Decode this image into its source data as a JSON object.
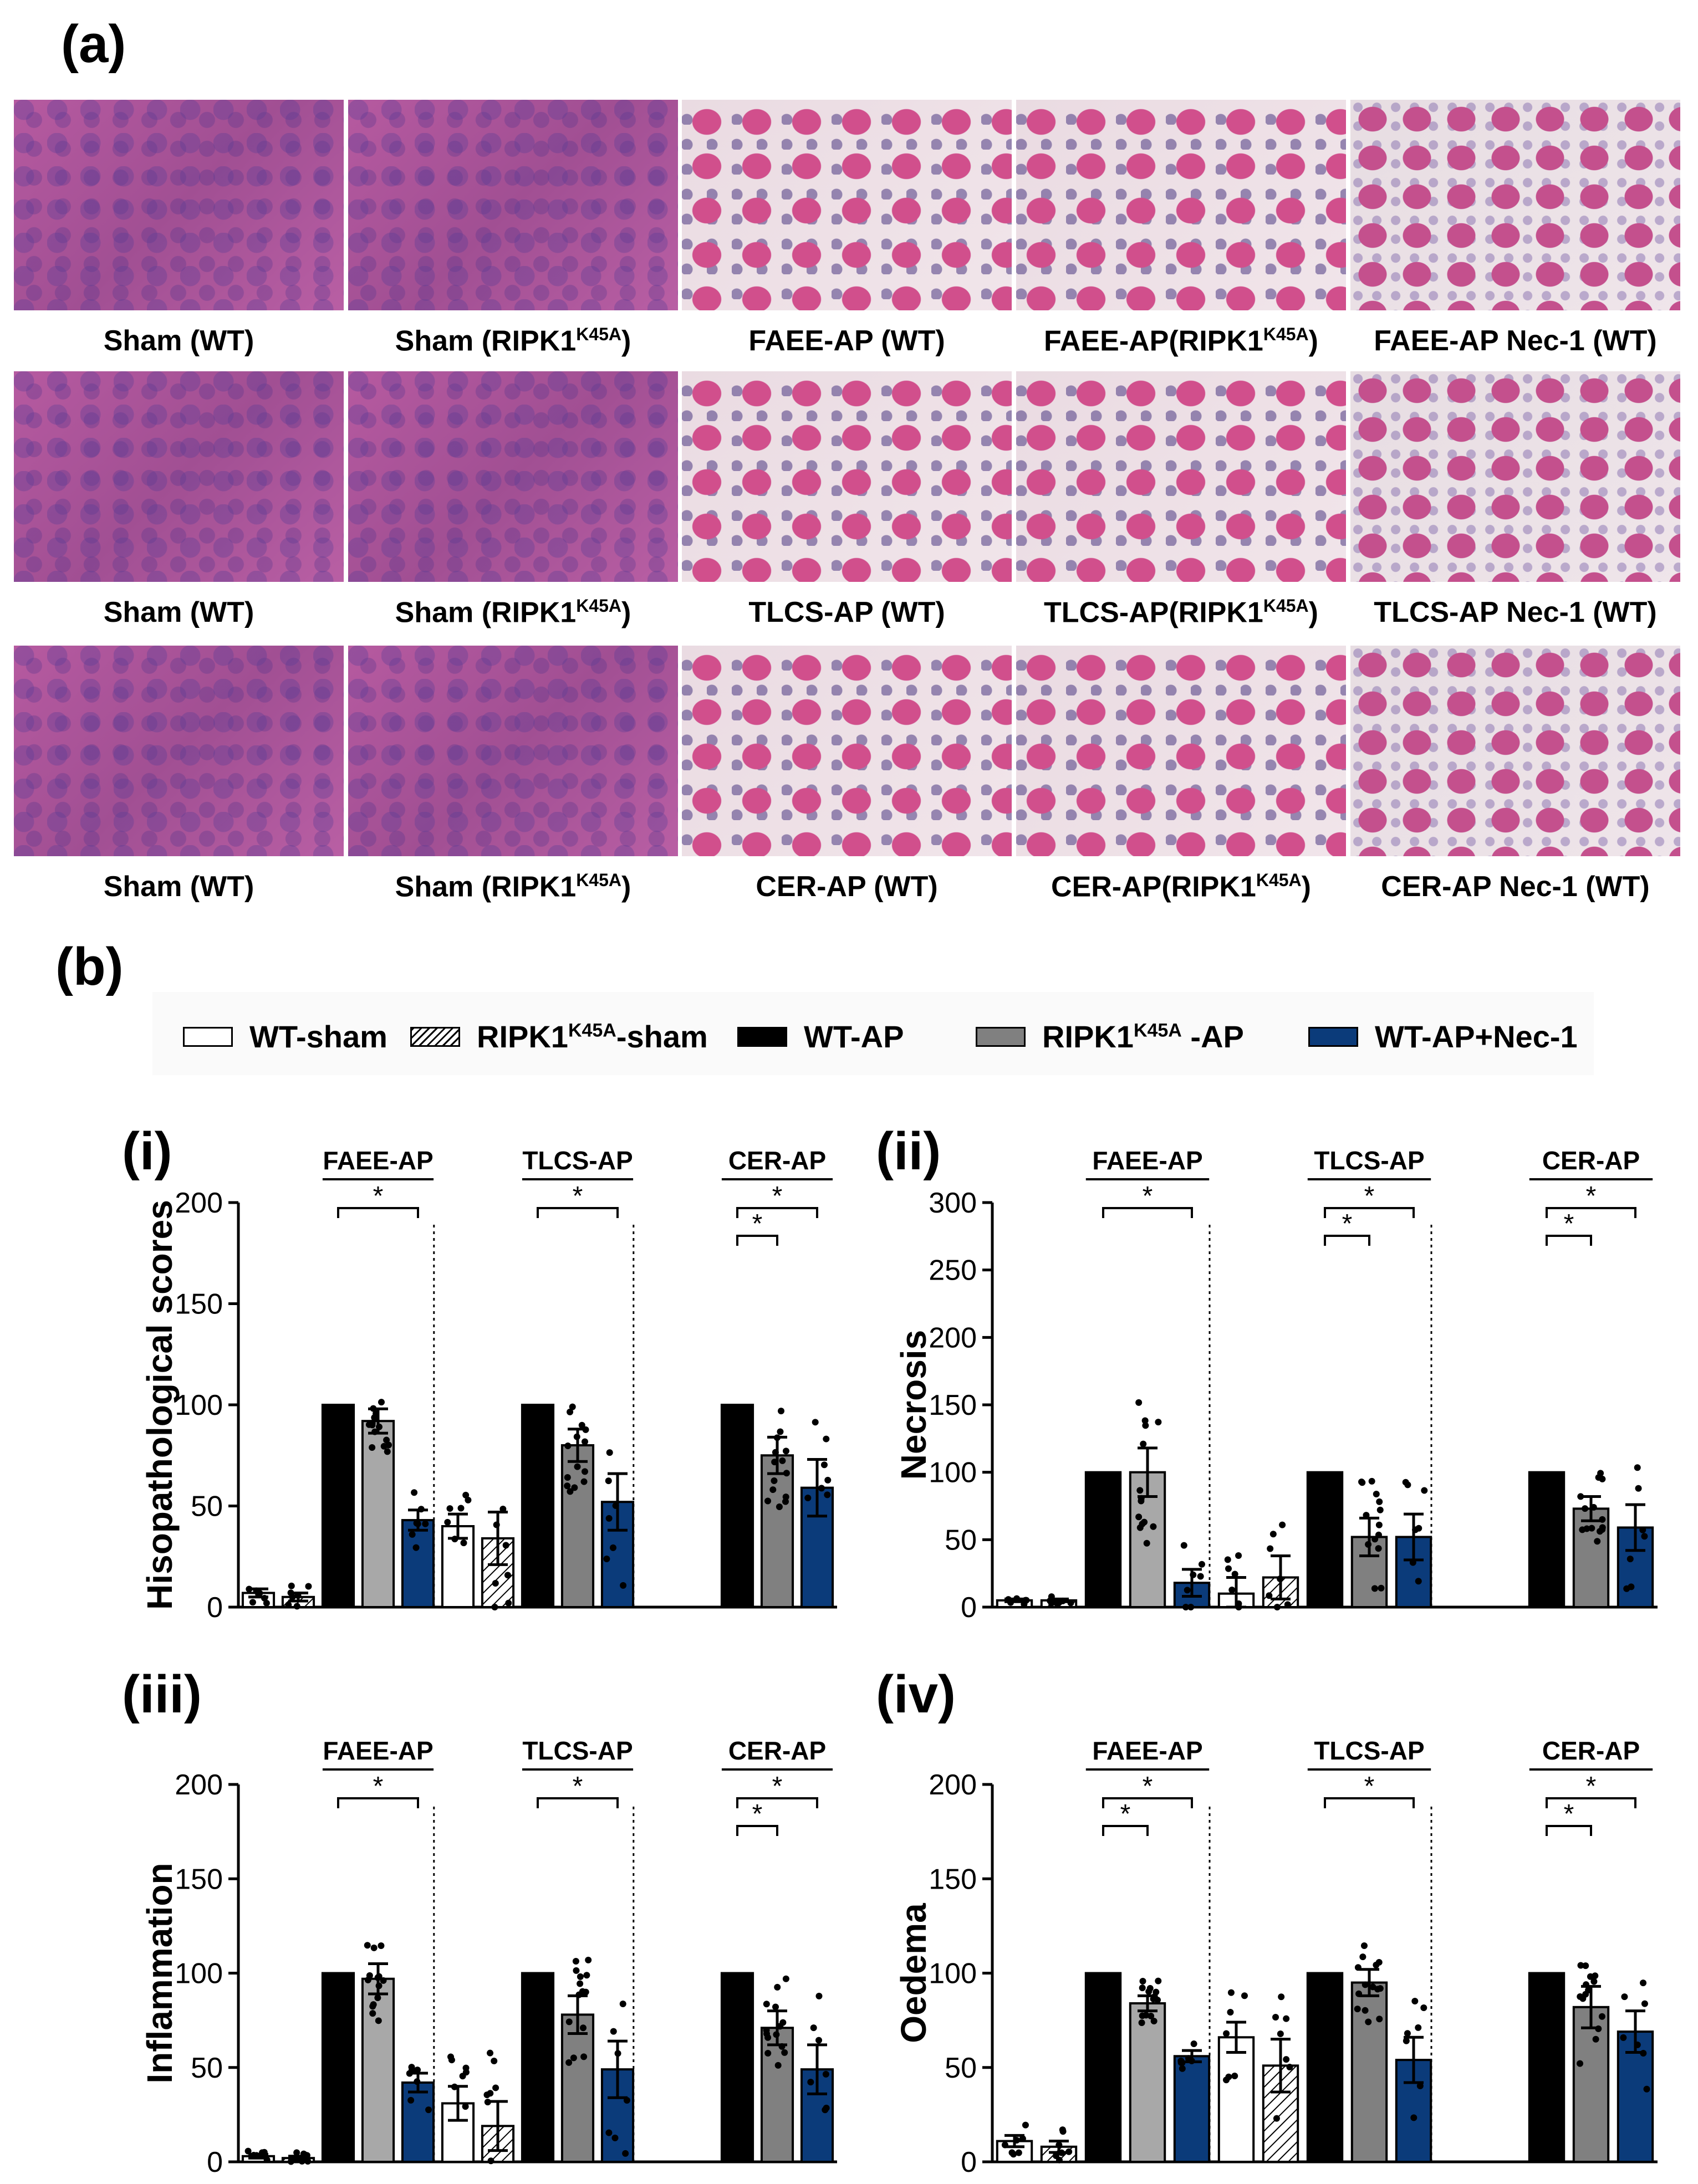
{
  "panel_a_label": "(a)",
  "panel_b_label": "(b)",
  "histology": {
    "rows": [
      {
        "tone": "normal",
        "labels": [
          "Sham (WT)",
          "Sham (RIPK1",
          "FAEE-AP (WT)",
          "FAEE-AP(RIPK1",
          "FAEE-AP Nec-1 (WT)"
        ],
        "sups": [
          "",
          "K45A",
          "",
          "K45A",
          ""
        ],
        "suffixes": [
          "",
          ")",
          "",
          ")",
          ""
        ],
        "styles": [
          "normal",
          "normal",
          "injured",
          "injured",
          "lobular"
        ]
      },
      {
        "labels": [
          "Sham (WT)",
          "Sham (RIPK1",
          "TLCS-AP (WT)",
          "TLCS-AP(RIPK1",
          "TLCS-AP Nec-1 (WT)"
        ],
        "sups": [
          "",
          "K45A",
          "",
          "K45A",
          ""
        ],
        "suffixes": [
          "",
          ")",
          "",
          ")",
          ""
        ],
        "styles": [
          "normal",
          "normal",
          "injured",
          "injured",
          "lobular"
        ]
      },
      {
        "labels": [
          "Sham (WT)",
          "Sham (RIPK1",
          "CER-AP (WT)",
          "CER-AP(RIPK1",
          "CER-AP Nec-1 (WT)"
        ],
        "sups": [
          "",
          "K45A",
          "",
          "K45A",
          ""
        ],
        "suffixes": [
          "",
          ")",
          "",
          ")",
          ""
        ],
        "styles": [
          "normal",
          "normal",
          "injured",
          "injured",
          "lobular"
        ]
      }
    ]
  },
  "legend": {
    "items": [
      {
        "label": "WT-sham",
        "sup": "",
        "suffix": "",
        "fill": "#ffffff",
        "hatch": false
      },
      {
        "label": "RIPK1",
        "sup": "K45A",
        "suffix": "-sham",
        "fill": "#ffffff",
        "hatch": true
      },
      {
        "label": "WT-AP",
        "sup": "",
        "suffix": "",
        "fill": "#000000",
        "hatch": false
      },
      {
        "label": "RIPK1",
        "sup": "K45A",
        "suffix": " -AP",
        "fill": "#808080",
        "hatch": false
      },
      {
        "label": "WT-AP+Nec-1",
        "sup": "",
        "suffix": "",
        "fill": "#0b3b7a",
        "hatch": false
      }
    ]
  },
  "colors": {
    "wt_sham": "#ffffff",
    "ripk_sham": "#ffffff",
    "wt_ap": "#000000",
    "ripk_ap": "#808080",
    "ripk_ap_light": "#a8a8a8",
    "nec1": "#0b3b7a"
  },
  "chart_data": [
    {
      "type": "bar",
      "panel": "(i)",
      "ylabel": "Hisopathological scores",
      "ylim": [
        0,
        200
      ],
      "yticks": [
        0,
        50,
        100,
        150,
        200
      ],
      "groups": [
        "FAEE-AP",
        "TLCS-AP",
        "CER-AP"
      ],
      "bars": [
        {
          "group": "FAEE-AP",
          "series": "WT-sham",
          "value": 7,
          "err": 2
        },
        {
          "group": "FAEE-AP",
          "series": "RIPK1K45A-sham",
          "value": 5,
          "err": 2
        },
        {
          "group": "FAEE-AP",
          "series": "WT-AP",
          "value": 100,
          "err": 0
        },
        {
          "group": "FAEE-AP",
          "series": "RIPK1K45A-AP",
          "value": 92,
          "err": 6
        },
        {
          "group": "FAEE-AP",
          "series": "WT-AP+Nec-1",
          "value": 43,
          "err": 5
        },
        {
          "group": "TLCS-AP",
          "series": "WT-sham",
          "value": 40,
          "err": 6
        },
        {
          "group": "TLCS-AP",
          "series": "RIPK1K45A-sham",
          "value": 34,
          "err": 13
        },
        {
          "group": "TLCS-AP",
          "series": "WT-AP",
          "value": 100,
          "err": 0
        },
        {
          "group": "TLCS-AP",
          "series": "RIPK1K45A-AP",
          "value": 80,
          "err": 8
        },
        {
          "group": "TLCS-AP",
          "series": "WT-AP+Nec-1",
          "value": 52,
          "err": 14
        },
        {
          "group": "CER-AP",
          "series": "WT-sham",
          "value": 0,
          "err": 0
        },
        {
          "group": "CER-AP",
          "series": "RIPK1K45A-sham",
          "value": 0,
          "err": 0
        },
        {
          "group": "CER-AP",
          "series": "WT-AP",
          "value": 100,
          "err": 0
        },
        {
          "group": "CER-AP",
          "series": "RIPK1K45A-AP",
          "value": 75,
          "err": 9
        },
        {
          "group": "CER-AP",
          "series": "WT-AP+Nec-1",
          "value": 59,
          "err": 14
        }
      ],
      "significance": [
        {
          "group": "FAEE-AP",
          "from": 2,
          "to": 4,
          "label": "*"
        },
        {
          "group": "TLCS-AP",
          "from": 2,
          "to": 4,
          "label": "*"
        },
        {
          "group": "CER-AP",
          "from": 2,
          "to": 3,
          "label": "*"
        },
        {
          "group": "CER-AP",
          "from": 2,
          "to": 4,
          "label": "*"
        }
      ]
    },
    {
      "type": "bar",
      "panel": "(ii)",
      "ylabel": "Necrosis",
      "ylim": [
        0,
        300
      ],
      "yticks": [
        0,
        50,
        100,
        150,
        200,
        250,
        300
      ],
      "groups": [
        "FAEE-AP",
        "TLCS-AP",
        "CER-AP"
      ],
      "bars": [
        {
          "group": "FAEE-AP",
          "series": "WT-sham",
          "value": 5,
          "err": 1
        },
        {
          "group": "FAEE-AP",
          "series": "RIPK1K45A-sham",
          "value": 5,
          "err": 1
        },
        {
          "group": "FAEE-AP",
          "series": "WT-AP",
          "value": 100,
          "err": 0
        },
        {
          "group": "FAEE-AP",
          "series": "RIPK1K45A-AP",
          "value": 100,
          "err": 18
        },
        {
          "group": "FAEE-AP",
          "series": "WT-AP+Nec-1",
          "value": 18,
          "err": 10
        },
        {
          "group": "TLCS-AP",
          "series": "WT-sham",
          "value": 10,
          "err": 12
        },
        {
          "group": "TLCS-AP",
          "series": "RIPK1K45A-sham",
          "value": 22,
          "err": 16
        },
        {
          "group": "TLCS-AP",
          "series": "WT-AP",
          "value": 100,
          "err": 0
        },
        {
          "group": "TLCS-AP",
          "series": "RIPK1K45A-AP",
          "value": 52,
          "err": 14
        },
        {
          "group": "TLCS-AP",
          "series": "WT-AP+Nec-1",
          "value": 52,
          "err": 17
        },
        {
          "group": "CER-AP",
          "series": "WT-sham",
          "value": 0,
          "err": 0
        },
        {
          "group": "CER-AP",
          "series": "RIPK1K45A-sham",
          "value": 0,
          "err": 0
        },
        {
          "group": "CER-AP",
          "series": "WT-AP",
          "value": 100,
          "err": 0
        },
        {
          "group": "CER-AP",
          "series": "RIPK1K45A-AP",
          "value": 73,
          "err": 9
        },
        {
          "group": "CER-AP",
          "series": "WT-AP+Nec-1",
          "value": 59,
          "err": 17
        }
      ],
      "significance": [
        {
          "group": "FAEE-AP",
          "from": 2,
          "to": 4,
          "label": "*"
        },
        {
          "group": "TLCS-AP",
          "from": 2,
          "to": 3,
          "label": "*"
        },
        {
          "group": "TLCS-AP",
          "from": 2,
          "to": 4,
          "label": "*"
        },
        {
          "group": "CER-AP",
          "from": 2,
          "to": 3,
          "label": "*"
        },
        {
          "group": "CER-AP",
          "from": 2,
          "to": 4,
          "label": "*"
        }
      ]
    },
    {
      "type": "bar",
      "panel": "(iii)",
      "ylabel": "Inflammation",
      "ylim": [
        0,
        200
      ],
      "yticks": [
        0,
        50,
        100,
        150,
        200
      ],
      "groups": [
        "FAEE-AP",
        "TLCS-AP",
        "CER-AP"
      ],
      "bars": [
        {
          "group": "FAEE-AP",
          "series": "WT-sham",
          "value": 3,
          "err": 1
        },
        {
          "group": "FAEE-AP",
          "series": "RIPK1K45A-sham",
          "value": 2,
          "err": 1
        },
        {
          "group": "FAEE-AP",
          "series": "WT-AP",
          "value": 100,
          "err": 0
        },
        {
          "group": "FAEE-AP",
          "series": "RIPK1K45A-AP",
          "value": 97,
          "err": 8
        },
        {
          "group": "FAEE-AP",
          "series": "WT-AP+Nec-1",
          "value": 42,
          "err": 5
        },
        {
          "group": "TLCS-AP",
          "series": "WT-sham",
          "value": 31,
          "err": 9
        },
        {
          "group": "TLCS-AP",
          "series": "RIPK1K45A-sham",
          "value": 19,
          "err": 13
        },
        {
          "group": "TLCS-AP",
          "series": "WT-AP",
          "value": 100,
          "err": 0
        },
        {
          "group": "TLCS-AP",
          "series": "RIPK1K45A-AP",
          "value": 78,
          "err": 10
        },
        {
          "group": "TLCS-AP",
          "series": "WT-AP+Nec-1",
          "value": 49,
          "err": 15
        },
        {
          "group": "CER-AP",
          "series": "WT-sham",
          "value": 0,
          "err": 0
        },
        {
          "group": "CER-AP",
          "series": "RIPK1K45A-sham",
          "value": 0,
          "err": 0
        },
        {
          "group": "CER-AP",
          "series": "WT-AP",
          "value": 100,
          "err": 0
        },
        {
          "group": "CER-AP",
          "series": "RIPK1K45A-AP",
          "value": 71,
          "err": 9
        },
        {
          "group": "CER-AP",
          "series": "WT-AP+Nec-1",
          "value": 49,
          "err": 13
        }
      ],
      "significance": [
        {
          "group": "FAEE-AP",
          "from": 2,
          "to": 4,
          "label": "*"
        },
        {
          "group": "TLCS-AP",
          "from": 2,
          "to": 4,
          "label": "*"
        },
        {
          "group": "CER-AP",
          "from": 2,
          "to": 3,
          "label": "*"
        },
        {
          "group": "CER-AP",
          "from": 2,
          "to": 4,
          "label": "*"
        }
      ]
    },
    {
      "type": "bar",
      "panel": "(iv)",
      "ylabel": "Oedema",
      "ylim": [
        0,
        200
      ],
      "yticks": [
        0,
        50,
        100,
        150,
        200
      ],
      "groups": [
        "FAEE-AP",
        "TLCS-AP",
        "CER-AP"
      ],
      "bars": [
        {
          "group": "FAEE-AP",
          "series": "WT-sham",
          "value": 11,
          "err": 3
        },
        {
          "group": "FAEE-AP",
          "series": "RIPK1K45A-sham",
          "value": 8,
          "err": 3
        },
        {
          "group": "FAEE-AP",
          "series": "WT-AP",
          "value": 100,
          "err": 0
        },
        {
          "group": "FAEE-AP",
          "series": "RIPK1K45A-AP",
          "value": 84,
          "err": 4
        },
        {
          "group": "FAEE-AP",
          "series": "WT-AP+Nec-1",
          "value": 56,
          "err": 3
        },
        {
          "group": "TLCS-AP",
          "series": "WT-sham",
          "value": 66,
          "err": 8
        },
        {
          "group": "TLCS-AP",
          "series": "RIPK1K45A-sham",
          "value": 51,
          "err": 14
        },
        {
          "group": "TLCS-AP",
          "series": "WT-AP",
          "value": 100,
          "err": 0
        },
        {
          "group": "TLCS-AP",
          "series": "RIPK1K45A-AP",
          "value": 95,
          "err": 7
        },
        {
          "group": "TLCS-AP",
          "series": "WT-AP+Nec-1",
          "value": 54,
          "err": 12
        },
        {
          "group": "CER-AP",
          "series": "WT-sham",
          "value": 0,
          "err": 0
        },
        {
          "group": "CER-AP",
          "series": "RIPK1K45A-sham",
          "value": 0,
          "err": 0
        },
        {
          "group": "CER-AP",
          "series": "WT-AP",
          "value": 100,
          "err": 0
        },
        {
          "group": "CER-AP",
          "series": "RIPK1K45A-AP",
          "value": 82,
          "err": 11
        },
        {
          "group": "CER-AP",
          "series": "WT-AP+Nec-1",
          "value": 69,
          "err": 11
        }
      ],
      "significance": [
        {
          "group": "FAEE-AP",
          "from": 2,
          "to": 3,
          "label": "*"
        },
        {
          "group": "FAEE-AP",
          "from": 2,
          "to": 4,
          "label": "*"
        },
        {
          "group": "TLCS-AP",
          "from": 2,
          "to": 4,
          "label": "*"
        },
        {
          "group": "CER-AP",
          "from": 2,
          "to": 3,
          "label": "*"
        },
        {
          "group": "CER-AP",
          "from": 2,
          "to": 4,
          "label": "*"
        }
      ]
    }
  ]
}
